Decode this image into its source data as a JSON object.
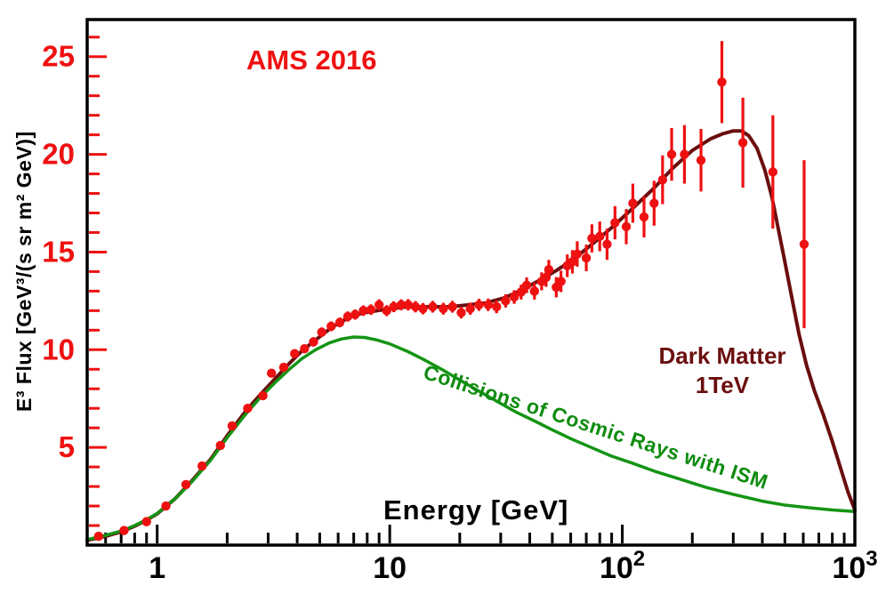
{
  "colors": {
    "background": "#ffffff",
    "frame": "#000000",
    "data_points": "#ee1111",
    "y_ticks": "#ee1111",
    "x_ticks": "#000000",
    "total_curve": "#6b0e0e",
    "secondary_curve": "#149414",
    "title_text": "#ee1111",
    "dm_text": "#6b0e0e",
    "secondary_text": "#0f8c0f"
  },
  "chart_data": {
    "type": "scatter",
    "title": "AMS 2016",
    "xlabel": "Energy [GeV]",
    "ylabel": "E³ Flux [GeV³/(s sr m² GeV)]",
    "x_scale": "log",
    "xlim": [
      0.5,
      1000
    ],
    "ylim": [
      0,
      26.9
    ],
    "grid": false,
    "x_ticks": [
      {
        "value": 1,
        "base": "1",
        "sup": ""
      },
      {
        "value": 10,
        "base": "10",
        "sup": ""
      },
      {
        "value": 100,
        "base": "10",
        "sup": "2"
      },
      {
        "value": 1000,
        "base": "10",
        "sup": "3"
      }
    ],
    "y_ticks": [
      5,
      10,
      15,
      20,
      25
    ],
    "y_minor_step": 1,
    "annotations": {
      "dark_matter_line1": "Dark Matter",
      "dark_matter_line2": "1TeV",
      "secondary": "Collisions of Cosmic Rays with ISM"
    },
    "series": [
      {
        "name": "AMS 2016 positron flux data",
        "style": "points_with_error_bars",
        "columns": [
          "energy_GeV",
          "e3_flux",
          "flux_error"
        ],
        "points": [
          [
            0.56,
            0.45,
            0.1
          ],
          [
            0.72,
            0.75,
            0.1
          ],
          [
            0.9,
            1.2,
            0.1
          ],
          [
            1.09,
            2.0,
            0.12
          ],
          [
            1.33,
            3.1,
            0.14
          ],
          [
            1.56,
            4.05,
            0.15
          ],
          [
            1.87,
            5.1,
            0.16
          ],
          [
            2.1,
            6.1,
            0.17
          ],
          [
            2.45,
            7.0,
            0.18
          ],
          [
            2.85,
            7.65,
            0.2
          ],
          [
            3.1,
            8.8,
            0.2
          ],
          [
            3.5,
            9.1,
            0.2
          ],
          [
            3.9,
            9.8,
            0.22
          ],
          [
            4.3,
            10.05,
            0.22
          ],
          [
            4.7,
            10.4,
            0.24
          ],
          [
            5.1,
            10.9,
            0.24
          ],
          [
            5.6,
            11.2,
            0.25
          ],
          [
            6.1,
            11.4,
            0.25
          ],
          [
            6.6,
            11.7,
            0.26
          ],
          [
            7.1,
            11.8,
            0.26
          ],
          [
            7.7,
            12.0,
            0.27
          ],
          [
            8.3,
            12.05,
            0.27
          ],
          [
            9.0,
            12.3,
            0.28
          ],
          [
            9.7,
            12.0,
            0.28
          ],
          [
            10.4,
            12.2,
            0.28
          ],
          [
            11.2,
            12.3,
            0.28
          ],
          [
            12.0,
            12.3,
            0.29
          ],
          [
            12.9,
            12.2,
            0.29
          ],
          [
            13.9,
            12.1,
            0.29
          ],
          [
            15.3,
            12.2,
            0.3
          ],
          [
            17.0,
            12.1,
            0.3
          ],
          [
            18.6,
            12.2,
            0.3
          ],
          [
            20.3,
            11.9,
            0.3
          ],
          [
            22.2,
            12.1,
            0.31
          ],
          [
            24.2,
            12.3,
            0.31
          ],
          [
            26.5,
            12.3,
            0.32
          ],
          [
            28.8,
            12.2,
            0.33
          ],
          [
            31.5,
            12.5,
            0.34
          ],
          [
            34.3,
            12.7,
            0.35
          ],
          [
            36.7,
            12.95,
            0.38
          ],
          [
            38.8,
            13.3,
            0.4
          ],
          [
            41.9,
            13.0,
            0.43
          ],
          [
            45.0,
            13.5,
            0.46
          ],
          [
            47.0,
            13.7,
            0.48
          ],
          [
            48.3,
            14.1,
            0.5
          ],
          [
            52.0,
            13.2,
            0.52
          ],
          [
            54.5,
            13.5,
            0.55
          ],
          [
            58.0,
            14.3,
            0.58
          ],
          [
            61.0,
            14.5,
            0.6
          ],
          [
            64.0,
            14.9,
            0.65
          ],
          [
            70.0,
            14.7,
            0.68
          ],
          [
            74.0,
            15.7,
            0.72
          ],
          [
            80.0,
            15.8,
            0.76
          ],
          [
            86.0,
            15.4,
            0.8
          ],
          [
            93.0,
            16.5,
            0.85
          ],
          [
            104,
            16.3,
            0.9
          ],
          [
            111,
            17.5,
            1.0
          ],
          [
            124,
            16.8,
            1.05
          ],
          [
            137,
            17.5,
            1.15
          ],
          [
            149,
            18.7,
            1.25
          ],
          [
            163,
            20.0,
            1.35
          ],
          [
            185,
            20.0,
            1.5
          ],
          [
            218,
            19.7,
            1.6
          ],
          [
            268,
            23.7,
            2.1
          ],
          [
            330,
            20.6,
            2.3
          ],
          [
            444,
            19.1,
            2.9
          ],
          [
            605,
            15.4,
            4.3
          ]
        ]
      },
      {
        "name": "Dark Matter 1TeV model (total flux)",
        "style": "curve",
        "columns": [
          "energy_GeV",
          "e3_flux"
        ],
        "points": [
          [
            0.5,
            0.25
          ],
          [
            0.6,
            0.45
          ],
          [
            0.7,
            0.68
          ],
          [
            0.8,
            0.97
          ],
          [
            0.9,
            1.28
          ],
          [
            1.0,
            1.6
          ],
          [
            1.2,
            2.4
          ],
          [
            1.4,
            3.25
          ],
          [
            1.7,
            4.4
          ],
          [
            2.0,
            5.6
          ],
          [
            2.4,
            6.85
          ],
          [
            2.8,
            7.75
          ],
          [
            3.2,
            8.5
          ],
          [
            3.7,
            9.3
          ],
          [
            4.2,
            9.95
          ],
          [
            4.8,
            10.5
          ],
          [
            5.5,
            11.05
          ],
          [
            6.2,
            11.45
          ],
          [
            7.0,
            11.75
          ],
          [
            7.8,
            11.9
          ],
          [
            8.8,
            12.0
          ],
          [
            10,
            12.1
          ],
          [
            12,
            12.2
          ],
          [
            15,
            12.2
          ],
          [
            18,
            12.2
          ],
          [
            22,
            12.3
          ],
          [
            26,
            12.4
          ],
          [
            31,
            12.65
          ],
          [
            37,
            13.05
          ],
          [
            44,
            13.55
          ],
          [
            52,
            14.05
          ],
          [
            62,
            14.65
          ],
          [
            75,
            15.45
          ],
          [
            90,
            16.25
          ],
          [
            110,
            17.2
          ],
          [
            135,
            18.2
          ],
          [
            165,
            19.3
          ],
          [
            200,
            20.2
          ],
          [
            240,
            20.8
          ],
          [
            270,
            21.05
          ],
          [
            300,
            21.2
          ],
          [
            325,
            21.2
          ],
          [
            350,
            20.95
          ],
          [
            380,
            20.3
          ],
          [
            410,
            19.2
          ],
          [
            440,
            17.8
          ],
          [
            470,
            16.1
          ],
          [
            500,
            14.5
          ],
          [
            535,
            12.7
          ],
          [
            575,
            10.8
          ],
          [
            620,
            9.2
          ],
          [
            670,
            7.9
          ],
          [
            730,
            6.7
          ],
          [
            800,
            5.3
          ],
          [
            870,
            3.9
          ],
          [
            935,
            2.7
          ],
          [
            1000,
            1.8
          ]
        ]
      },
      {
        "name": "Collisions of Cosmic Rays with ISM (secondary production)",
        "style": "curve",
        "columns": [
          "energy_GeV",
          "e3_flux"
        ],
        "points": [
          [
            0.5,
            0.28
          ],
          [
            0.6,
            0.5
          ],
          [
            0.7,
            0.72
          ],
          [
            0.8,
            1.0
          ],
          [
            0.9,
            1.3
          ],
          [
            1.0,
            1.62
          ],
          [
            1.2,
            2.4
          ],
          [
            1.4,
            3.2
          ],
          [
            1.7,
            4.35
          ],
          [
            2.0,
            5.5
          ],
          [
            2.4,
            6.7
          ],
          [
            2.8,
            7.6
          ],
          [
            3.2,
            8.3
          ],
          [
            3.7,
            9.0
          ],
          [
            4.2,
            9.55
          ],
          [
            4.8,
            10.0
          ],
          [
            5.5,
            10.35
          ],
          [
            6.2,
            10.55
          ],
          [
            7.0,
            10.65
          ],
          [
            7.8,
            10.63
          ],
          [
            8.8,
            10.5
          ],
          [
            10,
            10.3
          ],
          [
            12,
            9.9
          ],
          [
            14,
            9.5
          ],
          [
            17,
            8.95
          ],
          [
            20,
            8.45
          ],
          [
            24,
            7.9
          ],
          [
            29,
            7.35
          ],
          [
            35,
            6.8
          ],
          [
            42,
            6.35
          ],
          [
            50,
            5.9
          ],
          [
            60,
            5.45
          ],
          [
            75,
            4.95
          ],
          [
            90,
            4.55
          ],
          [
            110,
            4.2
          ],
          [
            140,
            3.75
          ],
          [
            180,
            3.35
          ],
          [
            230,
            2.95
          ],
          [
            300,
            2.6
          ],
          [
            400,
            2.25
          ],
          [
            500,
            2.05
          ],
          [
            650,
            1.9
          ],
          [
            800,
            1.8
          ],
          [
            1000,
            1.72
          ]
        ]
      }
    ]
  }
}
